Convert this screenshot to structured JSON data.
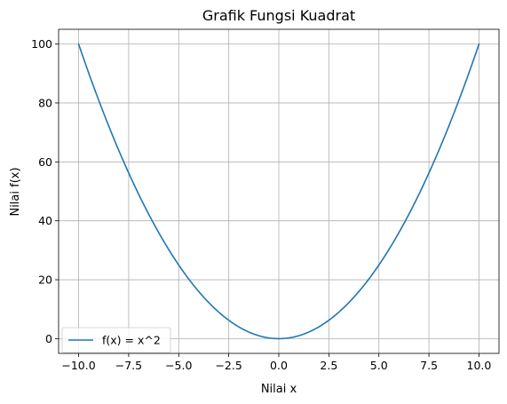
{
  "chart_data": {
    "type": "line",
    "title": "Grafik Fungsi Kuadrat",
    "xlabel": "Nilai x",
    "ylabel": "Nilai f(x)",
    "xlim": [
      -11,
      11
    ],
    "ylim": [
      -5,
      105
    ],
    "grid": true,
    "legend_position": "lower-left",
    "x_ticks": [
      -10.0,
      -7.5,
      -5.0,
      -2.5,
      0.0,
      2.5,
      5.0,
      7.5,
      10.0
    ],
    "x_tick_labels": [
      "−10.0",
      "−7.5",
      "−5.0",
      "−2.5",
      "0.0",
      "2.5",
      "5.0",
      "7.5",
      "10.0"
    ],
    "y_ticks": [
      0,
      20,
      40,
      60,
      80,
      100
    ],
    "y_tick_labels": [
      "0",
      "20",
      "40",
      "60",
      "80",
      "100"
    ],
    "series": [
      {
        "name": "f(x) = x^2",
        "color": "#1f77b4",
        "x": [
          -10,
          -9,
          -8,
          -7,
          -6,
          -5,
          -4,
          -3,
          -2,
          -1,
          0,
          1,
          2,
          3,
          4,
          5,
          6,
          7,
          8,
          9,
          10
        ],
        "y": [
          100,
          81,
          64,
          49,
          36,
          25,
          16,
          9,
          4,
          1,
          0,
          1,
          4,
          9,
          16,
          25,
          36,
          49,
          64,
          81,
          100
        ]
      }
    ]
  }
}
